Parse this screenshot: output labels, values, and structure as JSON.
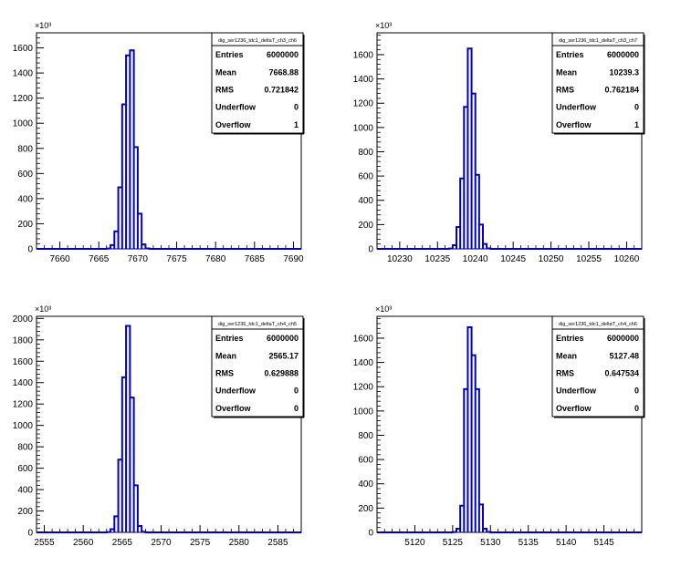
{
  "chart_data": [
    {
      "type": "histogram",
      "stats": {
        "title": "dig_ser1236_tdc1_deltaT_ch3_ch6",
        "rows": [
          {
            "label": "Entries",
            "value": "6000000"
          },
          {
            "label": "Mean",
            "value": "7668.88"
          },
          {
            "label": "RMS",
            "value": "0.721842"
          },
          {
            "label": "Underflow",
            "value": "0"
          },
          {
            "label": "Overflow",
            "value": "1"
          }
        ]
      },
      "y_multiplier": "×10³",
      "xlim": [
        7657,
        7691
      ],
      "ylim": [
        0,
        1720
      ],
      "x_ticks": [
        7660,
        7665,
        7670,
        7675,
        7680,
        7685,
        7690
      ],
      "y_ticks": [
        0,
        200,
        400,
        600,
        800,
        1000,
        1200,
        1400,
        1600
      ],
      "bin_width": 0.5,
      "bins": [
        {
          "x": 7666.0,
          "y": 3
        },
        {
          "x": 7666.5,
          "y": 30
        },
        {
          "x": 7667.0,
          "y": 140
        },
        {
          "x": 7667.5,
          "y": 490
        },
        {
          "x": 7668.0,
          "y": 1150
        },
        {
          "x": 7668.5,
          "y": 1540
        },
        {
          "x": 7669.0,
          "y": 1580
        },
        {
          "x": 7669.5,
          "y": 810
        },
        {
          "x": 7670.0,
          "y": 280
        },
        {
          "x": 7670.5,
          "y": 35
        },
        {
          "x": 7671.0,
          "y": 4
        }
      ]
    },
    {
      "type": "histogram",
      "stats": {
        "title": "dig_ser1236_tdc1_deltaT_ch3_ch7",
        "rows": [
          {
            "label": "Entries",
            "value": "6000000"
          },
          {
            "label": "Mean",
            "value": "10239.3"
          },
          {
            "label": "RMS",
            "value": "0.762184"
          },
          {
            "label": "Underflow",
            "value": "0"
          },
          {
            "label": "Overflow",
            "value": "1"
          }
        ]
      },
      "y_multiplier": "×10³",
      "xlim": [
        10227,
        10262
      ],
      "ylim": [
        0,
        1780
      ],
      "x_ticks": [
        10230,
        10235,
        10240,
        10245,
        10250,
        10255,
        10260
      ],
      "y_ticks": [
        0,
        200,
        400,
        600,
        800,
        1000,
        1200,
        1400,
        1600
      ],
      "bin_width": 0.5,
      "bins": [
        {
          "x": 10236.5,
          "y": 3
        },
        {
          "x": 10237.0,
          "y": 30
        },
        {
          "x": 10237.5,
          "y": 180
        },
        {
          "x": 10238.0,
          "y": 580
        },
        {
          "x": 10238.5,
          "y": 1170
        },
        {
          "x": 10239.0,
          "y": 1650
        },
        {
          "x": 10239.5,
          "y": 1280
        },
        {
          "x": 10240.0,
          "y": 610
        },
        {
          "x": 10240.5,
          "y": 200
        },
        {
          "x": 10241.0,
          "y": 40
        },
        {
          "x": 10241.5,
          "y": 4
        }
      ]
    },
    {
      "type": "histogram",
      "stats": {
        "title": "dig_ser1236_tdc1_deltaT_ch4_ch5",
        "rows": [
          {
            "label": "Entries",
            "value": "6000000"
          },
          {
            "label": "Mean",
            "value": "2565.17"
          },
          {
            "label": "RMS",
            "value": "0.629888"
          },
          {
            "label": "Underflow",
            "value": "0"
          },
          {
            "label": "Overflow",
            "value": "0"
          }
        ]
      },
      "y_multiplier": "×10³",
      "xlim": [
        2554,
        2588
      ],
      "ylim": [
        0,
        2020
      ],
      "x_ticks": [
        2555,
        2560,
        2565,
        2570,
        2575,
        2580,
        2585
      ],
      "y_ticks": [
        0,
        200,
        400,
        600,
        800,
        1000,
        1200,
        1400,
        1600,
        1800,
        2000
      ],
      "bin_width": 0.5,
      "bins": [
        {
          "x": 2563.0,
          "y": 3
        },
        {
          "x": 2563.5,
          "y": 30
        },
        {
          "x": 2564.0,
          "y": 150
        },
        {
          "x": 2564.5,
          "y": 680
        },
        {
          "x": 2565.0,
          "y": 1450
        },
        {
          "x": 2565.5,
          "y": 1930
        },
        {
          "x": 2566.0,
          "y": 1260
        },
        {
          "x": 2566.5,
          "y": 440
        },
        {
          "x": 2567.0,
          "y": 60
        },
        {
          "x": 2567.5,
          "y": 5
        }
      ]
    },
    {
      "type": "histogram",
      "stats": {
        "title": "dig_ser1236_tdc1_deltaT_ch4_ch6",
        "rows": [
          {
            "label": "Entries",
            "value": "6000000"
          },
          {
            "label": "Mean",
            "value": "5127.48"
          },
          {
            "label": "RMS",
            "value": "0.647534"
          },
          {
            "label": "Underflow",
            "value": "0"
          },
          {
            "label": "Overflow",
            "value": "0"
          }
        ]
      },
      "y_multiplier": "×10³",
      "xlim": [
        5115,
        5150
      ],
      "ylim": [
        0,
        1780
      ],
      "x_ticks": [
        5120,
        5125,
        5130,
        5135,
        5140,
        5145
      ],
      "y_ticks": [
        0,
        200,
        400,
        600,
        800,
        1000,
        1200,
        1400,
        1600
      ],
      "bin_width": 0.5,
      "bins": [
        {
          "x": 5125.0,
          "y": 3
        },
        {
          "x": 5125.5,
          "y": 30
        },
        {
          "x": 5126.0,
          "y": 220
        },
        {
          "x": 5126.5,
          "y": 1180
        },
        {
          "x": 5127.0,
          "y": 1690
        },
        {
          "x": 5127.5,
          "y": 1460
        },
        {
          "x": 5128.0,
          "y": 1180
        },
        {
          "x": 5128.5,
          "y": 230
        },
        {
          "x": 5129.0,
          "y": 30
        },
        {
          "x": 5129.5,
          "y": 4
        }
      ]
    }
  ]
}
